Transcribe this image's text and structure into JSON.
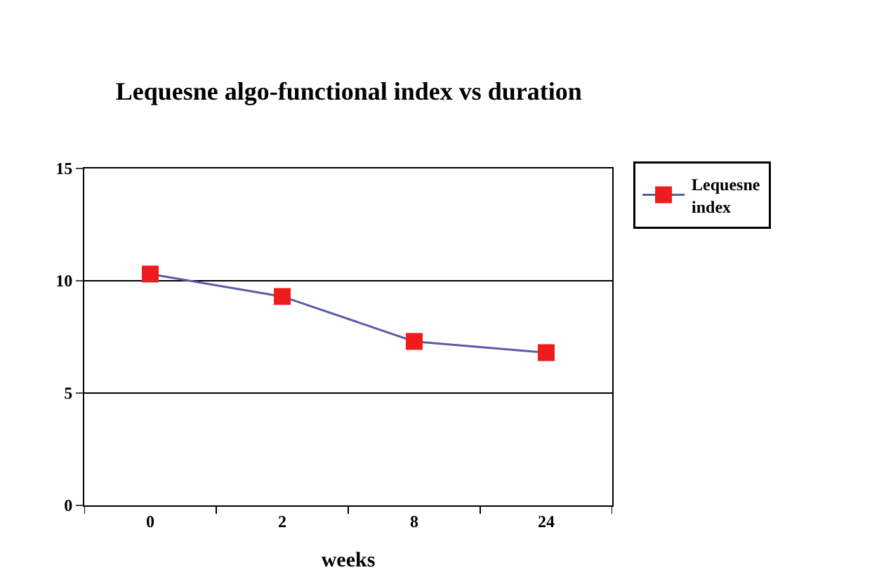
{
  "chart_data": {
    "type": "line",
    "title": "Lequesne algo-functional index vs duration",
    "xlabel": "weeks",
    "categories": [
      "0",
      "2",
      "8",
      "24"
    ],
    "series": [
      {
        "name": "Lequesne index",
        "color": "#ee1c1c",
        "values": [
          10.3,
          9.3,
          7.3,
          6.8
        ]
      }
    ],
    "ylim": [
      0,
      15
    ],
    "yticks": [
      0,
      5,
      10,
      15
    ],
    "grid": "y",
    "legend": "top right",
    "marker": "square",
    "line_style": "solid"
  }
}
